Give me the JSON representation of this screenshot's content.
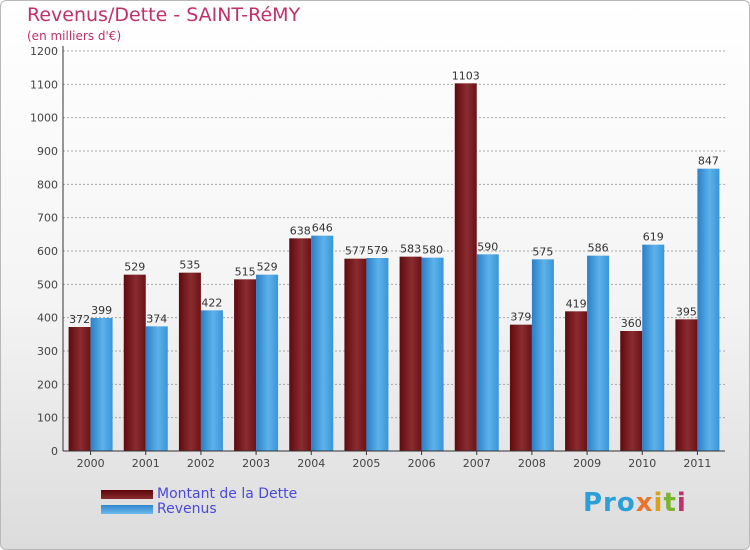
{
  "title": "Revenus/Dette - SAINT-RéMY",
  "subtitle": "(en milliers d'€)",
  "legend": {
    "debt_label": "Montant de la Dette",
    "revenue_label": "Revenus"
  },
  "logo": {
    "p1": "Pro",
    "p2": "x",
    "p3": "i",
    "p4": "t",
    "p5": "i",
    "full": "Proxiti"
  },
  "colors": {
    "debt": "#7a1e22",
    "revenue": "#3d9fe0",
    "title": "#c0306a",
    "legend_text": "#4a4ad8"
  },
  "chart_data": {
    "type": "bar",
    "title": "Revenus/Dette - SAINT-RéMY",
    "subtitle": "(en milliers d'€)",
    "categories": [
      "2000",
      "2001",
      "2002",
      "2003",
      "2004",
      "2005",
      "2006",
      "2007",
      "2008",
      "2009",
      "2010",
      "2011"
    ],
    "series": [
      {
        "name": "Montant de la Dette",
        "values": [
          372,
          529,
          535,
          515,
          638,
          577,
          583,
          1103,
          379,
          419,
          360,
          395
        ]
      },
      {
        "name": "Revenus",
        "values": [
          399,
          374,
          422,
          529,
          646,
          579,
          580,
          590,
          575,
          586,
          619,
          847
        ]
      }
    ],
    "y_ticks": [
      0,
      100,
      200,
      300,
      400,
      500,
      600,
      700,
      800,
      900,
      1000,
      1100,
      1200
    ],
    "ylim": [
      0,
      1200
    ],
    "grid": "horizontal",
    "legend_position": "bottom-left"
  }
}
